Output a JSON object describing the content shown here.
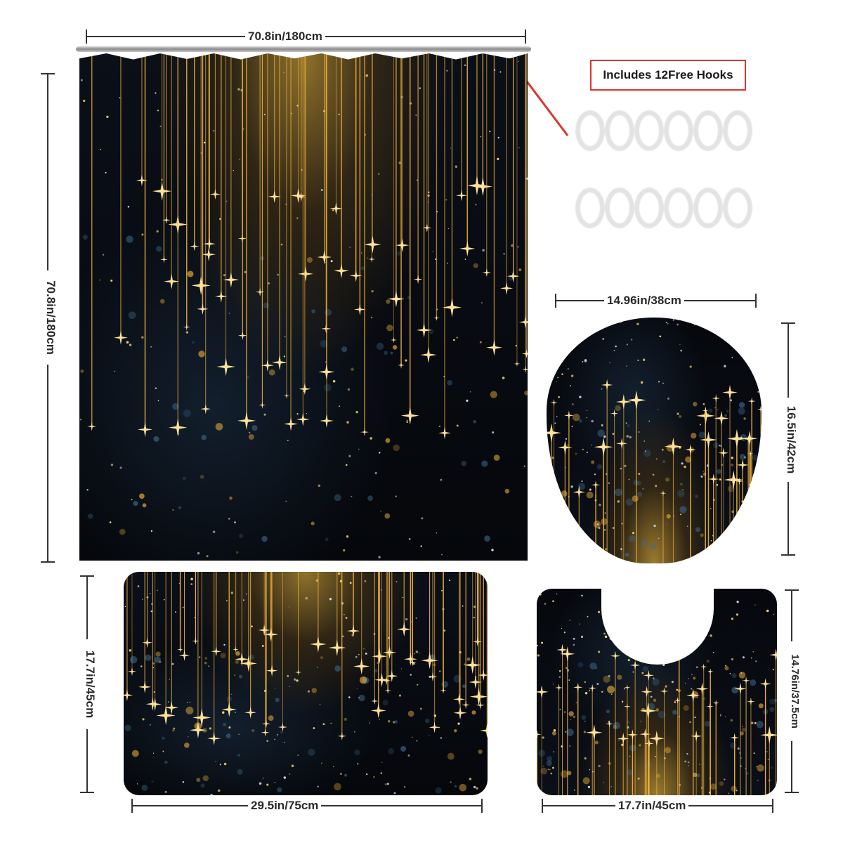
{
  "dimensions": {
    "curtain_width": "70.8in/180cm",
    "curtain_height": "70.8in/180cm",
    "lid_width": "14.96in/38cm",
    "lid_height": "16.5in/42cm",
    "bath_mat_width": "29.5in/75cm",
    "bath_mat_height": "17.7in/45cm",
    "contour_mat_width": "17.7in/45cm",
    "contour_mat_height": "14.76in/37.5cm"
  },
  "hooks_label": "Includes 12Free Hooks",
  "hook_count": 12,
  "colors": {
    "accent_red": "#d9362b",
    "gold": "#f3b53a",
    "night": "#070a10"
  }
}
